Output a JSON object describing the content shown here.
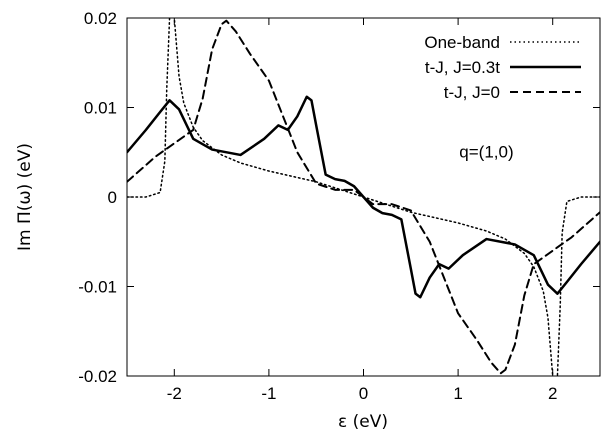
{
  "chart_data": {
    "type": "line",
    "xlabel": "ε (eV)",
    "ylabel": "Im Π(ω) (eV)",
    "xlim": [
      -2.5,
      2.5
    ],
    "ylim": [
      -0.02,
      0.02
    ],
    "xticks": [
      -2,
      -1,
      0,
      1,
      2
    ],
    "xtick_labels": [
      "-2",
      "-1",
      "0",
      "1",
      "2"
    ],
    "yticks": [
      -0.02,
      -0.01,
      0,
      0.01,
      0.02
    ],
    "ytick_labels": [
      "-0.02",
      "-0.01",
      "0",
      "0.01",
      "0.02"
    ],
    "grid": false,
    "legend_position": "top-right",
    "annotations": [
      {
        "text": "q=(1,0)",
        "x": 1.3,
        "y": 0.0044
      }
    ],
    "series": [
      {
        "name": "One-band",
        "style": "dotted",
        "x": [
          -2.5,
          -2.3,
          -2.15,
          -2.1,
          -2.08,
          -2.05,
          -2.02,
          -2.0,
          -1.95,
          -1.9,
          -1.8,
          -1.7,
          -1.5,
          -1.3,
          -1.0,
          -0.5,
          0.0,
          0.5,
          1.0,
          1.3,
          1.5,
          1.7,
          1.8,
          1.9,
          1.95,
          2.0,
          2.02,
          2.05,
          2.08,
          2.1,
          2.15,
          2.3,
          2.5
        ],
        "y": [
          0.0,
          0.0,
          0.0005,
          0.004,
          0.012,
          0.02,
          0.022,
          0.02,
          0.0135,
          0.0105,
          0.0078,
          0.0063,
          0.0047,
          0.0038,
          0.0029,
          0.0017,
          0.0,
          -0.0017,
          -0.0029,
          -0.0038,
          -0.0047,
          -0.0063,
          -0.0078,
          -0.0105,
          -0.0135,
          -0.02,
          -0.022,
          -0.02,
          -0.012,
          -0.004,
          -0.0005,
          0.0,
          0.0
        ]
      },
      {
        "name": "t-J, J=0.3t",
        "style": "solid",
        "x": [
          -2.5,
          -2.3,
          -2.15,
          -2.05,
          -1.95,
          -1.8,
          -1.6,
          -1.3,
          -1.05,
          -0.9,
          -0.8,
          -0.7,
          -0.6,
          -0.55,
          -0.5,
          -0.4,
          -0.3,
          -0.2,
          -0.1,
          0.0,
          0.1,
          0.2,
          0.3,
          0.4,
          0.5,
          0.55,
          0.6,
          0.7,
          0.8,
          0.9,
          1.05,
          1.3,
          1.6,
          1.8,
          1.95,
          2.05,
          2.15,
          2.3,
          2.5
        ],
        "y": [
          0.005,
          0.0075,
          0.0095,
          0.0108,
          0.0098,
          0.0065,
          0.0053,
          0.0047,
          0.0065,
          0.008,
          0.0075,
          0.009,
          0.0112,
          0.0108,
          0.008,
          0.0025,
          0.002,
          0.0018,
          0.0012,
          0.0,
          -0.0012,
          -0.0018,
          -0.002,
          -0.0025,
          -0.008,
          -0.0108,
          -0.0112,
          -0.009,
          -0.0075,
          -0.008,
          -0.0065,
          -0.0047,
          -0.0053,
          -0.0065,
          -0.0098,
          -0.0108,
          -0.0095,
          -0.0075,
          -0.005
        ]
      },
      {
        "name": "t-J, J=0",
        "style": "dashed",
        "x": [
          -2.5,
          -2.2,
          -2.0,
          -1.8,
          -1.7,
          -1.6,
          -1.5,
          -1.45,
          -1.35,
          -1.2,
          -1.0,
          -0.85,
          -0.7,
          -0.5,
          -0.3,
          -0.1,
          0.0,
          0.1,
          0.3,
          0.5,
          0.7,
          0.85,
          1.0,
          1.2,
          1.35,
          1.45,
          1.5,
          1.6,
          1.7,
          1.8,
          2.0,
          2.2,
          2.5
        ],
        "y": [
          0.0017,
          0.0045,
          0.006,
          0.0075,
          0.011,
          0.0165,
          0.0193,
          0.0197,
          0.0185,
          0.016,
          0.013,
          0.009,
          0.005,
          0.0015,
          0.0008,
          0.0008,
          0.0,
          -0.0008,
          -0.0008,
          -0.0015,
          -0.005,
          -0.009,
          -0.013,
          -0.016,
          -0.0185,
          -0.0197,
          -0.0193,
          -0.0165,
          -0.011,
          -0.0075,
          -0.006,
          -0.0045,
          -0.0017
        ]
      }
    ]
  }
}
